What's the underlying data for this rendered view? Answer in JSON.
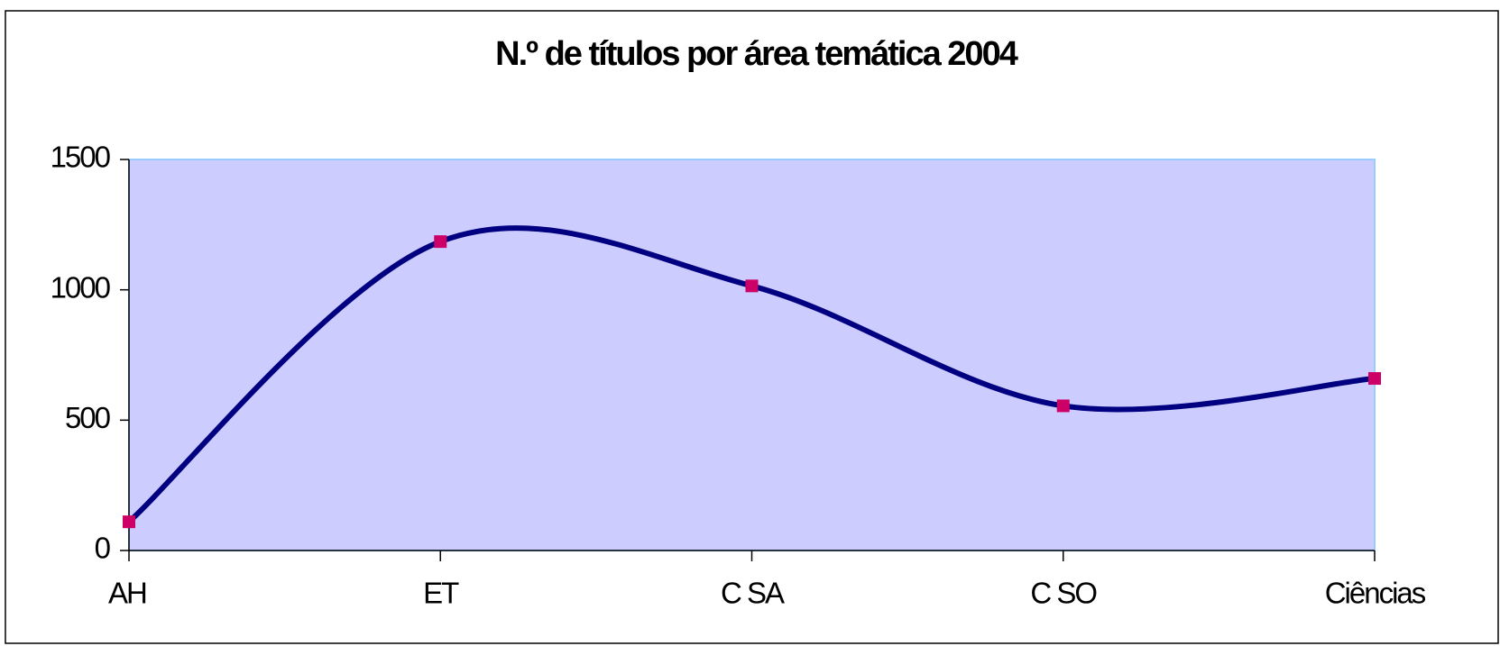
{
  "chart_data": {
    "type": "line",
    "title": "N.º de títulos por área temática 2004",
    "categories": [
      "AH",
      "ET",
      "C SA",
      "C SO",
      "Ciências"
    ],
    "series": [
      {
        "name": "2004",
        "color": "#000080",
        "marker_color": "#cc0066",
        "values": [
          110,
          1185,
          1015,
          555,
          660
        ]
      }
    ],
    "smooth": true,
    "ylim": [
      0,
      1500
    ],
    "yticks": [
      0,
      500,
      1000,
      1500
    ],
    "grid": false
  }
}
